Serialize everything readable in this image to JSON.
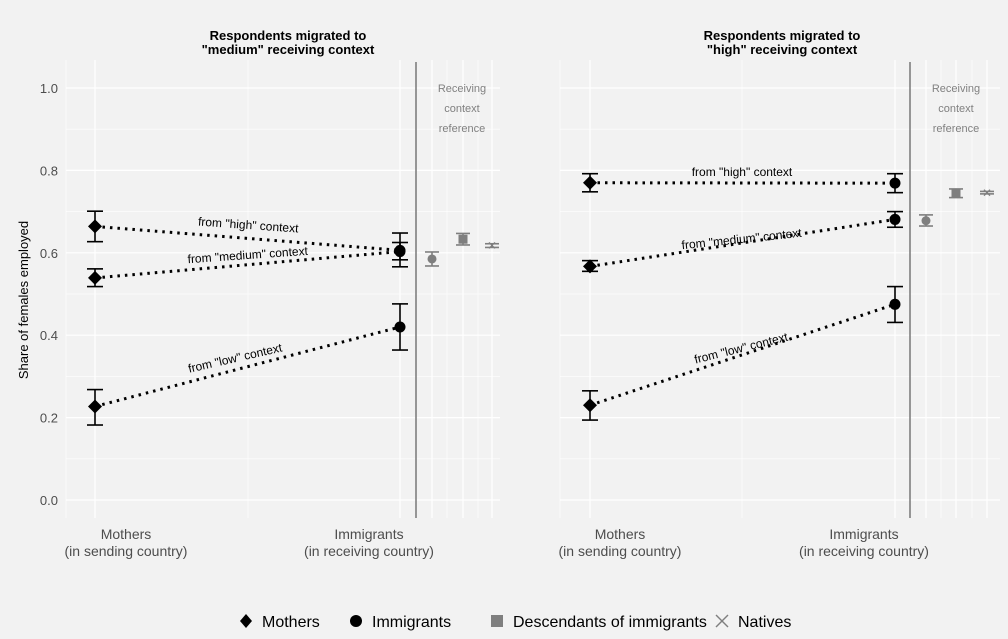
{
  "chart_data": {
    "type": "scatter",
    "ylabel": "Share of females employed",
    "ylim": [
      0,
      1
    ],
    "yticks": [
      "0.0",
      "0.2",
      "0.4",
      "0.6",
      "0.8",
      "1.0"
    ],
    "x_categories": [
      "Mothers\n(in sending country)",
      "Immigrants\n(in receiving country)"
    ],
    "reference_label": "Receiving\ncontext\nreference",
    "legend": {
      "position": "bottom",
      "items": [
        {
          "label": "Mothers",
          "symbol": "diamond"
        },
        {
          "label": "Immigrants",
          "symbol": "circle"
        },
        {
          "label": "Descendants of immigrants",
          "symbol": "square"
        },
        {
          "label": "Natives",
          "symbol": "cross"
        }
      ]
    },
    "colors": {
      "main": "#000000",
      "reference": "#7f7f7f",
      "divider": "#7f7f7f",
      "grid": "#ffffff"
    },
    "panels": [
      {
        "title": "Respondents migrated to\n\"medium\" receiving context",
        "groups": [
          {
            "label": "from \"high\" context",
            "mothers": {
              "y": 0.664,
              "lo": 0.627,
              "hi": 0.701
            },
            "immigrants": {
              "y": 0.606,
              "lo": 0.566,
              "hi": 0.648
            }
          },
          {
            "label": "from \"medium\" context",
            "mothers": {
              "y": 0.539,
              "lo": 0.518,
              "hi": 0.561
            },
            "immigrants": {
              "y": 0.603,
              "lo": 0.583,
              "hi": 0.625
            }
          },
          {
            "label": "from \"low\" context",
            "mothers": {
              "y": 0.227,
              "lo": 0.182,
              "hi": 0.268
            },
            "immigrants": {
              "y": 0.42,
              "lo": 0.364,
              "hi": 0.476
            }
          }
        ],
        "reference": {
          "immigrants": {
            "y": 0.585,
            "lo": 0.568,
            "hi": 0.602
          },
          "descendants": {
            "y": 0.633,
            "lo": 0.619,
            "hi": 0.647
          },
          "natives": {
            "y": 0.618,
            "lo": 0.613,
            "hi": 0.622
          }
        }
      },
      {
        "title": "Respondents migrated to\n\"high\" receiving context",
        "groups": [
          {
            "label": "from \"high\" context",
            "mothers": {
              "y": 0.77,
              "lo": 0.748,
              "hi": 0.792
            },
            "immigrants": {
              "y": 0.769,
              "lo": 0.746,
              "hi": 0.792
            }
          },
          {
            "label": "from \"medium\" context",
            "mothers": {
              "y": 0.567,
              "lo": 0.555,
              "hi": 0.581
            },
            "immigrants": {
              "y": 0.681,
              "lo": 0.662,
              "hi": 0.7
            }
          },
          {
            "label": "from \"low\" context",
            "mothers": {
              "y": 0.23,
              "lo": 0.194,
              "hi": 0.265
            },
            "immigrants": {
              "y": 0.475,
              "lo": 0.431,
              "hi": 0.518
            }
          }
        ],
        "reference": {
          "immigrants": {
            "y": 0.678,
            "lo": 0.665,
            "hi": 0.692
          },
          "descendants": {
            "y": 0.744,
            "lo": 0.734,
            "hi": 0.755
          },
          "natives": {
            "y": 0.746,
            "lo": 0.743,
            "hi": 0.749
          }
        }
      }
    ]
  }
}
